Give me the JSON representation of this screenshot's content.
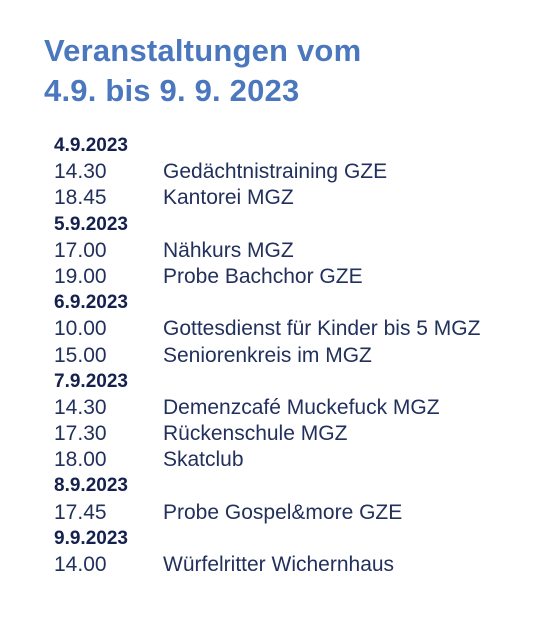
{
  "header": {
    "title_line1": "Veranstaltungen vom",
    "title_line2": "4.9. bis 9. 9. 2023"
  },
  "colors": {
    "title": "#4a77bd",
    "text": "#22305c"
  },
  "days": [
    {
      "date": "4.9.2023",
      "events": [
        {
          "time": "14.30",
          "title": "Gedächtnistraining GZE"
        },
        {
          "time": "18.45",
          "title": "Kantorei MGZ"
        }
      ]
    },
    {
      "date": "5.9.2023",
      "events": [
        {
          "time": "17.00",
          "title": "Nähkurs MGZ"
        },
        {
          "time": "19.00",
          "title": "Probe Bachchor GZE"
        }
      ]
    },
    {
      "date": "6.9.2023",
      "events": [
        {
          "time": "10.00",
          "title": "Gottesdienst für Kinder bis 5 MGZ"
        },
        {
          "time": "15.00",
          "title": "Seniorenkreis im MGZ"
        }
      ]
    },
    {
      "date": "7.9.2023",
      "events": [
        {
          "time": "14.30",
          "title": "Demenzcafé Muckefuck MGZ"
        },
        {
          "time": "17.30",
          "title": "Rückenschule MGZ"
        },
        {
          "time": "18.00",
          "title": "Skatclub"
        }
      ]
    },
    {
      "date": "8.9.2023",
      "events": [
        {
          "time": "17.45",
          "title": "Probe Gospel&more GZE"
        }
      ]
    },
    {
      "date": "9.9.2023",
      "events": [
        {
          "time": "14.00",
          "title": "Würfelritter Wichernhaus"
        }
      ]
    }
  ]
}
